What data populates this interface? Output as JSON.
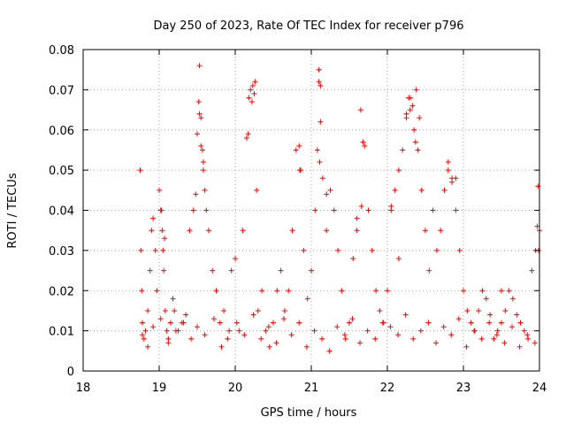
{
  "chart_data": {
    "type": "scatter",
    "title": "Day 250 of 2023, Rate Of TEC Index for receiver p796",
    "xlabel": "GPS time / hours",
    "ylabel": "ROTI / TECUs",
    "xlim": [
      18,
      24
    ],
    "ylim": [
      0,
      0.08
    ],
    "xticks": [
      "18",
      "19",
      "20",
      "21",
      "22",
      "23",
      "24"
    ],
    "yticks": [
      "0",
      "0.01",
      "0.02",
      "0.03",
      "0.04",
      "0.05",
      "0.06",
      "0.07",
      "0.08"
    ],
    "grid": true,
    "marker": "+",
    "color": "#ff0000",
    "x": [
      18.75,
      18.76,
      18.77,
      18.78,
      18.8,
      18.82,
      18.85,
      18.88,
      18.9,
      18.92,
      18.95,
      18.97,
      19.0,
      19.02,
      19.04,
      19.05,
      19.06,
      19.08,
      19.1,
      19.12,
      19.15,
      19.18,
      19.2,
      19.25,
      19.3,
      19.35,
      19.4,
      19.45,
      19.48,
      19.5,
      19.52,
      19.53,
      19.55,
      19.57,
      19.58,
      19.6,
      19.62,
      19.65,
      19.7,
      19.75,
      19.8,
      19.85,
      19.9,
      19.95,
      20.0,
      20.05,
      20.1,
      20.15,
      20.18,
      20.2,
      20.22,
      20.25,
      20.28,
      20.3,
      20.35,
      20.4,
      20.45,
      20.5,
      20.55,
      20.6,
      20.65,
      20.7,
      20.75,
      20.8,
      20.85,
      20.9,
      20.95,
      21.0,
      21.05,
      21.08,
      21.1,
      21.12,
      21.15,
      21.2,
      21.25,
      21.3,
      21.35,
      21.4,
      21.45,
      21.5,
      21.55,
      21.6,
      21.65,
      21.7,
      21.75,
      21.8,
      21.85,
      21.9,
      21.95,
      22.0,
      22.05,
      22.1,
      22.15,
      22.2,
      22.25,
      22.28,
      22.3,
      22.35,
      22.38,
      22.4,
      22.45,
      22.5,
      22.55,
      22.6,
      22.65,
      22.7,
      22.75,
      22.8,
      22.85,
      22.9,
      22.95,
      23.0,
      23.05,
      23.1,
      23.15,
      23.2,
      23.25,
      23.3,
      23.35,
      23.4,
      23.45,
      23.5,
      23.55,
      23.6,
      23.65,
      23.7,
      23.75,
      23.8,
      23.85,
      23.9,
      23.95,
      23.98,
      24.0,
      18.78,
      18.85,
      18.92,
      19.02,
      19.12,
      19.22,
      19.32,
      19.42,
      19.5,
      19.6,
      19.72,
      19.82,
      19.92,
      20.02,
      20.12,
      20.24,
      20.34,
      20.44,
      20.54,
      20.64,
      20.74,
      20.84,
      20.94,
      21.04,
      21.14,
      21.24,
      21.34,
      21.44,
      21.54,
      21.64,
      21.74,
      21.84,
      21.94,
      22.04,
      22.14,
      22.24,
      22.34,
      22.44,
      22.54,
      22.64,
      22.74,
      22.84,
      22.94,
      23.04,
      23.14,
      23.24,
      23.34,
      23.44,
      23.54,
      23.64,
      23.74,
      23.84,
      23.94,
      19.03,
      19.07,
      19.53,
      19.55,
      19.58,
      20.23,
      20.26,
      20.17,
      21.1,
      21.12,
      21.11,
      20.84,
      20.86,
      21.66,
      21.68,
      22.25,
      22.3,
      22.33,
      22.37,
      22.42,
      22.8,
      22.85,
      22.9,
      23.97,
      23.99,
      21.2,
      21.6,
      22.05,
      22.15,
      23.5
    ],
    "y": [
      0.05,
      0.03,
      0.02,
      0.012,
      0.008,
      0.01,
      0.015,
      0.025,
      0.035,
      0.038,
      0.03,
      0.02,
      0.045,
      0.04,
      0.035,
      0.03,
      0.025,
      0.015,
      0.01,
      0.008,
      0.012,
      0.018,
      0.015,
      0.01,
      0.012,
      0.014,
      0.035,
      0.04,
      0.044,
      0.059,
      0.067,
      0.076,
      0.063,
      0.055,
      0.05,
      0.045,
      0.04,
      0.035,
      0.025,
      0.02,
      0.012,
      0.015,
      0.008,
      0.025,
      0.028,
      0.01,
      0.035,
      0.058,
      0.068,
      0.07,
      0.067,
      0.069,
      0.045,
      0.015,
      0.02,
      0.01,
      0.006,
      0.012,
      0.02,
      0.025,
      0.015,
      0.02,
      0.035,
      0.055,
      0.05,
      0.03,
      0.018,
      0.025,
      0.04,
      0.055,
      0.075,
      0.062,
      0.048,
      0.035,
      0.045,
      0.04,
      0.03,
      0.02,
      0.008,
      0.012,
      0.028,
      0.035,
      0.065,
      0.056,
      0.04,
      0.03,
      0.02,
      0.015,
      0.012,
      0.02,
      0.04,
      0.045,
      0.05,
      0.055,
      0.063,
      0.068,
      0.065,
      0.06,
      0.07,
      0.055,
      0.045,
      0.035,
      0.025,
      0.04,
      0.03,
      0.035,
      0.045,
      0.05,
      0.048,
      0.04,
      0.03,
      0.02,
      0.015,
      0.012,
      0.01,
      0.015,
      0.02,
      0.018,
      0.014,
      0.008,
      0.01,
      0.012,
      0.015,
      0.02,
      0.018,
      0.014,
      0.012,
      0.01,
      0.008,
      0.025,
      0.03,
      0.046,
      0.035,
      0.009,
      0.006,
      0.011,
      0.013,
      0.007,
      0.01,
      0.012,
      0.008,
      0.011,
      0.009,
      0.013,
      0.006,
      0.01,
      0.012,
      0.009,
      0.014,
      0.008,
      0.011,
      0.007,
      0.013,
      0.009,
      0.012,
      0.006,
      0.01,
      0.008,
      0.005,
      0.011,
      0.009,
      0.013,
      0.007,
      0.01,
      0.008,
      0.012,
      0.011,
      0.009,
      0.014,
      0.008,
      0.01,
      0.012,
      0.007,
      0.011,
      0.009,
      0.013,
      0.006,
      0.01,
      0.008,
      0.012,
      0.009,
      0.007,
      0.011,
      0.006,
      0.009,
      0.007,
      0.04,
      0.033,
      0.064,
      0.056,
      0.052,
      0.071,
      0.072,
      0.059,
      0.072,
      0.071,
      0.052,
      0.056,
      0.05,
      0.041,
      0.057,
      0.064,
      0.068,
      0.066,
      0.057,
      0.063,
      0.052,
      0.047,
      0.048,
      0.036,
      0.03,
      0.044,
      0.038,
      0.041,
      0.028,
      0.02
    ]
  }
}
